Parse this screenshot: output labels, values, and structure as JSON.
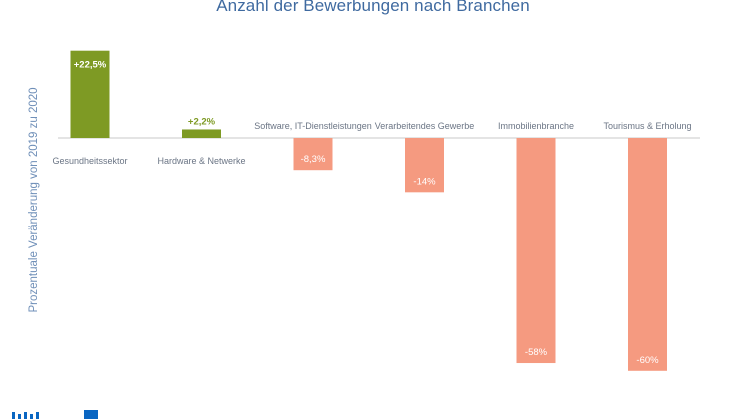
{
  "chart_data": {
    "type": "bar",
    "title": "Anzahl der Bewerbungen nach Branchen",
    "ylabel": "Prozentuale Veränderung von 2019 zu 2020",
    "xlabel": "",
    "categories": [
      "Gesundheitssektor",
      "Hardware & Netwerke",
      "Software, IT-Dienstleistungen",
      "Verarbeitendes Gewerbe",
      "Immobilienbranche",
      "Tourismus & Erholung"
    ],
    "values": [
      22.5,
      2.2,
      -8.3,
      -14,
      -58,
      -60
    ],
    "data_labels": [
      "+22,5%",
      "+2,2%",
      "-8,3%",
      "-14%",
      "-58%",
      "-60%"
    ],
    "ylim": [
      -60,
      22.5
    ],
    "grid": false,
    "colors": {
      "positive": "#7e9a24",
      "negative": "#f59a80",
      "baseline": "#c9c9c9",
      "title": "#3f6aa0"
    }
  }
}
